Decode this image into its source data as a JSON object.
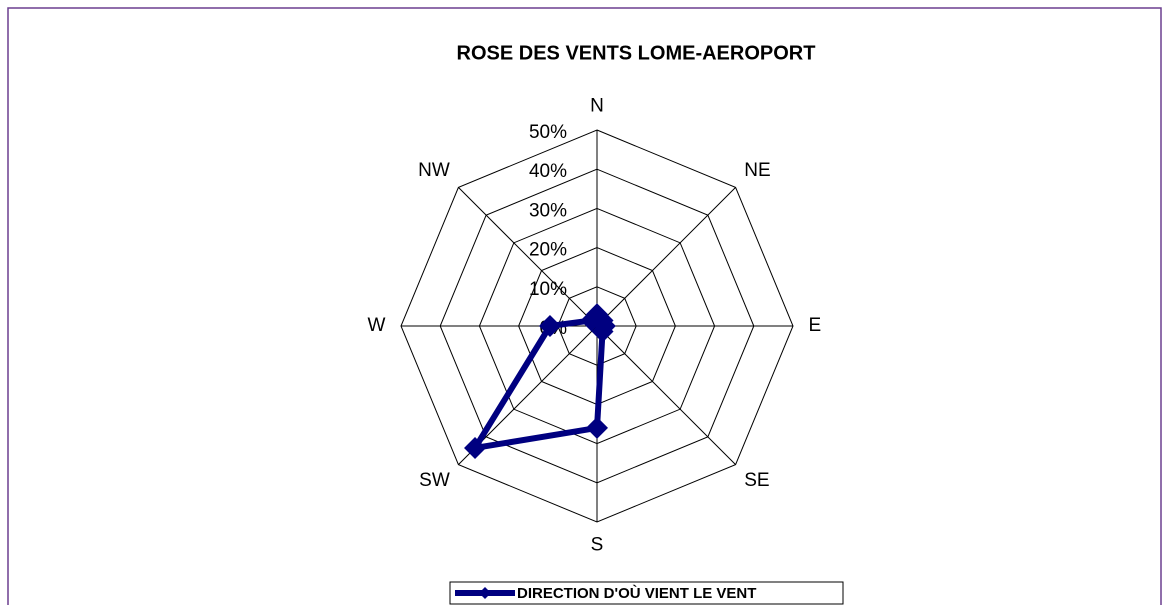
{
  "chart_data": {
    "type": "radar",
    "title": "ROSE DES VENTS LOME-AEROPORT",
    "categories": [
      "N",
      "NE",
      "E",
      "SE",
      "S",
      "SW",
      "W",
      "NW"
    ],
    "series": [
      {
        "name": "DIRECTION  D'OÙ VIENT LE VENT",
        "color": "#000080",
        "values": [
          3,
          2,
          2,
          2,
          26,
          44,
          12,
          2
        ]
      }
    ],
    "rlim": [
      0,
      50
    ],
    "rticks": [
      {
        "value": 0,
        "label": "0%"
      },
      {
        "value": 10,
        "label": "10%"
      },
      {
        "value": 20,
        "label": "20%"
      },
      {
        "value": 30,
        "label": "30%"
      },
      {
        "value": 40,
        "label": "40%"
      },
      {
        "value": 50,
        "label": "50%"
      }
    ],
    "grid": true,
    "legend": "bottom"
  }
}
